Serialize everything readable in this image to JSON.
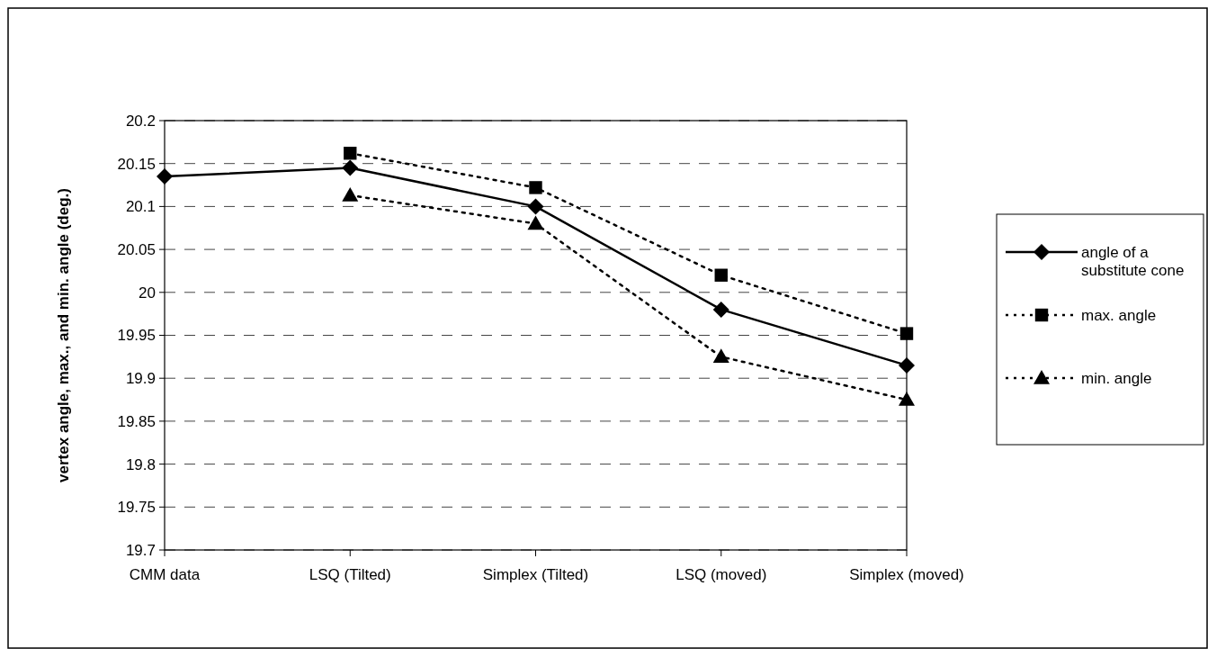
{
  "chart_data": {
    "type": "line",
    "ylabel": "vertex angle, max., and min. angle (deg.)",
    "categories": [
      "CMM data",
      "LSQ (Tilted)",
      "Simplex (Tilted)",
      "LSQ (moved)",
      "Simplex (moved)"
    ],
    "series": [
      {
        "name": "angle of a substitute cone",
        "color": "#000000",
        "marker": "diamond",
        "line_style": "solid",
        "values": [
          20.135,
          20.145,
          20.1,
          19.98,
          19.915
        ]
      },
      {
        "name": "max. angle",
        "color": "#000000",
        "marker": "square",
        "line_style": "dotted",
        "values": [
          null,
          20.162,
          20.122,
          20.02,
          19.952
        ]
      },
      {
        "name": "min. angle",
        "color": "#000000",
        "marker": "triangle",
        "line_style": "dotted",
        "values": [
          null,
          20.113,
          20.08,
          19.925,
          19.875
        ]
      }
    ],
    "ylim": [
      19.7,
      20.2
    ],
    "yticks": [
      19.7,
      19.75,
      19.8,
      19.85,
      19.9,
      19.95,
      20,
      20.05,
      20.1,
      20.15,
      20.2
    ],
    "grid": "y",
    "legend": "right"
  }
}
